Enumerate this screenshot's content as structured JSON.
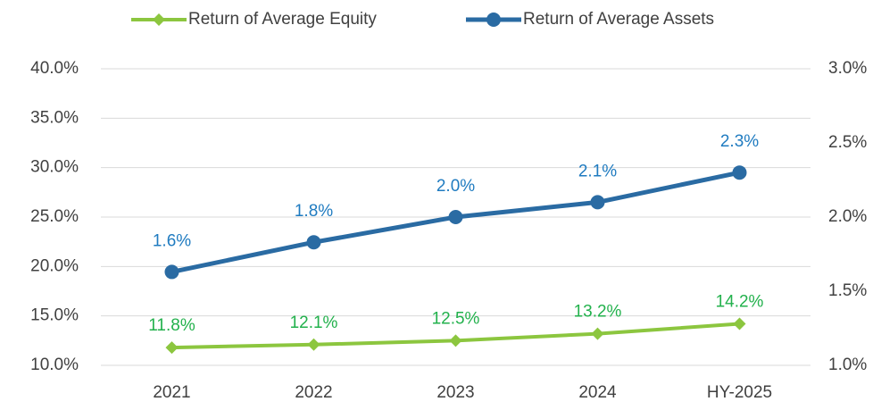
{
  "chart_data": {
    "type": "line",
    "categories": [
      "2021",
      "2022",
      "2023",
      "2024",
      "HY-2025"
    ],
    "series": [
      {
        "name": "Return of Average Equity",
        "color": "#8cc63f",
        "values": [
          11.8,
          12.1,
          12.5,
          13.2,
          14.2
        ],
        "value_labels": [
          "11.8%",
          "12.1%",
          "12.5%",
          "13.2%",
          "14.2%"
        ],
        "marker": "diamond"
      },
      {
        "name": "Return of Average Assets",
        "color": "#2a6ba3",
        "axis": "y2",
        "values": [
          1.63,
          1.83,
          2.0,
          2.1,
          2.3
        ],
        "value_labels": [
          "1.6%",
          "1.8%",
          "2.0%",
          "2.1%",
          "2.3%"
        ],
        "marker": "circle"
      }
    ],
    "ylim": [
      10,
      40
    ],
    "yticks": [
      {
        "value": 10,
        "label": "10.0%"
      },
      {
        "value": 15,
        "label": "15.0%"
      },
      {
        "value": 20,
        "label": "20.0%"
      },
      {
        "value": 25,
        "label": "25.0%"
      },
      {
        "value": 30,
        "label": "30.0%"
      },
      {
        "value": 35,
        "label": "35.0%"
      },
      {
        "value": 40,
        "label": "40.0%"
      }
    ],
    "y2lim": [
      1,
      3
    ],
    "y2ticks": [
      {
        "value": 1,
        "label": "1.0%"
      },
      {
        "value": 1.5,
        "label": "1.5%"
      },
      {
        "value": 2,
        "label": "2.0%"
      },
      {
        "value": 2.5,
        "label": "2.5%"
      },
      {
        "value": 3,
        "label": "3.0%"
      }
    ],
    "grid": true,
    "legend": "top"
  }
}
